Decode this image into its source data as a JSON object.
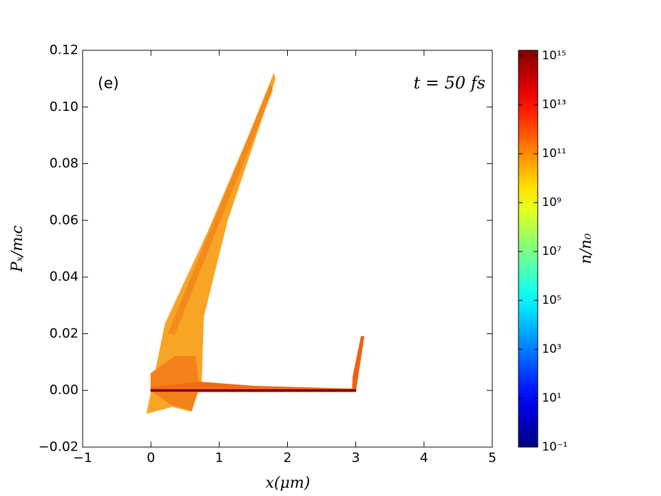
{
  "chart_data": {
    "type": "density",
    "panel_label": "(e)",
    "time_label": "t = 50 fs",
    "x_label": "x(μm)",
    "y_label": "Pₓ/mᵢc",
    "xlim": [
      -1,
      5
    ],
    "ylim": [
      -0.02,
      0.12
    ],
    "xticks": [
      {
        "value": -1,
        "label": "−1"
      },
      0,
      1,
      2,
      3,
      4,
      5
    ],
    "yticks": [
      {
        "value": -0.02,
        "label": "−0.02"
      },
      {
        "value": 0,
        "label": "0.00"
      },
      {
        "value": 0.02,
        "label": "0.02"
      },
      {
        "value": 0.04,
        "label": "0.04"
      },
      {
        "value": 0.06,
        "label": "0.06"
      },
      {
        "value": 0.08,
        "label": "0.08"
      },
      {
        "value": 0.1,
        "label": "0.10"
      },
      {
        "value": 0.12,
        "label": "0.12"
      }
    ],
    "regions": [
      {
        "color": "#f8a526",
        "x": [
          -0.06,
          0.21,
          0.82,
          1.42,
          1.8,
          1.82,
          1.12,
          0.77,
          0.74,
          0.59,
          0.31
        ],
        "y": [
          -0.0081,
          0.0235,
          0.0551,
          0.0891,
          0.1117,
          0.1098,
          0.06,
          0.0259,
          0.0028,
          -0.0074,
          -0.0057
        ]
      },
      {
        "color": "#f38a1b",
        "x": [
          0.25,
          1.75,
          1.78,
          0.35
        ],
        "y": [
          0.02,
          0.108,
          0.106,
          0.02
        ]
      },
      {
        "color": "#f3821a",
        "x": [
          0,
          0,
          0.35,
          0.65,
          0.7,
          0.6,
          0.3
        ],
        "y": [
          0,
          0.006,
          0.012,
          0.012,
          0.002,
          -0.007,
          -0.005
        ]
      },
      {
        "color": "#f26a16",
        "x": [
          0,
          3,
          3,
          1.5,
          0.7,
          0
        ],
        "y": [
          -0.0005,
          -0.0005,
          0.0005,
          0.0015,
          0.003,
          0.001
        ]
      },
      {
        "color": "#f06010",
        "x": [
          2.95,
          3,
          3.12,
          3.08,
          2.96
        ],
        "y": [
          0,
          0,
          0.019,
          0.019,
          0.005
        ]
      },
      {
        "color": "#800000",
        "x": [
          0,
          3,
          3,
          0
        ],
        "y": [
          -0.0003,
          -0.0003,
          0.0003,
          0.0003
        ]
      }
    ],
    "colorbar": {
      "label": "n/n₀",
      "colormap": "jet",
      "log": true,
      "clim": [
        0.1,
        1700000000000000.0
      ],
      "ticks": [
        {
          "value": 0.1,
          "label": "10⁻¹"
        },
        {
          "value": 10,
          "label": "10¹"
        },
        {
          "value": 1000,
          "label": "10³"
        },
        {
          "value": 100000,
          "label": "10⁵"
        },
        {
          "value": 10000000,
          "label": "10⁷"
        },
        {
          "value": 1000000000,
          "label": "10⁹"
        },
        {
          "value": 100000000000,
          "label": "10¹¹"
        },
        {
          "value": 10000000000000,
          "label": "10¹³"
        },
        {
          "value": 1000000000000000,
          "label": "10¹⁵"
        }
      ]
    }
  }
}
